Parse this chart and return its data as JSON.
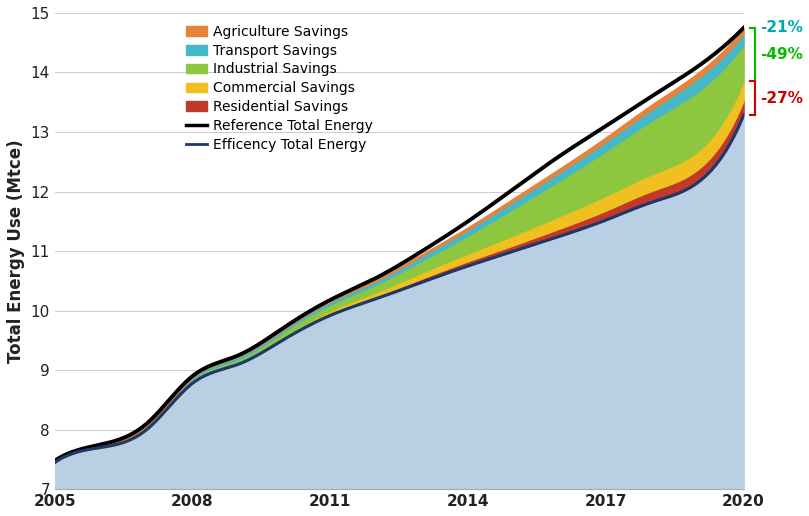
{
  "years": [
    2005,
    2006,
    2007,
    2008,
    2009,
    2010,
    2011,
    2012,
    2013,
    2014,
    2015,
    2016,
    2017,
    2018,
    2019,
    2020
  ],
  "efficiency_total": [
    7.45,
    7.7,
    8.0,
    8.78,
    9.1,
    9.52,
    9.92,
    10.2,
    10.48,
    10.75,
    11.0,
    11.25,
    11.52,
    11.82,
    12.15,
    13.28
  ],
  "reference_total": [
    7.48,
    7.75,
    8.1,
    8.9,
    9.25,
    9.72,
    10.18,
    10.55,
    11.0,
    11.5,
    12.05,
    12.6,
    13.1,
    13.6,
    14.1,
    14.75
  ],
  "residential_savings": [
    0.0,
    0.0,
    0.0,
    0.01,
    0.01,
    0.02,
    0.03,
    0.04,
    0.06,
    0.08,
    0.1,
    0.13,
    0.16,
    0.19,
    0.22,
    0.25
  ],
  "commercial_savings": [
    0.0,
    0.0,
    0.0,
    0.01,
    0.02,
    0.03,
    0.05,
    0.07,
    0.1,
    0.13,
    0.17,
    0.21,
    0.25,
    0.28,
    0.31,
    0.33
  ],
  "industrial_savings": [
    0.0,
    0.01,
    0.03,
    0.04,
    0.06,
    0.08,
    0.1,
    0.13,
    0.2,
    0.3,
    0.45,
    0.6,
    0.75,
    0.9,
    1.0,
    0.62
  ],
  "transport_savings": [
    0.0,
    0.01,
    0.03,
    0.03,
    0.04,
    0.04,
    0.05,
    0.06,
    0.08,
    0.1,
    0.12,
    0.14,
    0.16,
    0.19,
    0.22,
    0.17
  ],
  "agriculture_savings": [
    0.0,
    0.01,
    0.01,
    0.01,
    0.01,
    0.02,
    0.02,
    0.03,
    0.03,
    0.04,
    0.05,
    0.06,
    0.07,
    0.08,
    0.09,
    0.1
  ],
  "efficiency_area_color": "#b8cfe4",
  "residential_color": "#c0392b",
  "commercial_color": "#f0c020",
  "industrial_color": "#8dc63f",
  "transport_color": "#45b8c8",
  "agriculture_color": "#e8823a",
  "reference_line_color": "#000000",
  "efficiency_line_color": "#1a3a6b",
  "ylabel": "Total Energy Use (Mtce)",
  "ylim": [
    7,
    15
  ],
  "yticks": [
    7,
    8,
    9,
    10,
    11,
    12,
    13,
    14,
    15
  ],
  "xticks": [
    2005,
    2008,
    2011,
    2014,
    2017,
    2020
  ],
  "annotation_21_color": "#00aaaa",
  "annotation_49_color": "#00bb00",
  "annotation_27_color": "#cc0000",
  "legend_labels": [
    "Agriculture Savings",
    "Transport Savings",
    "Industrial Savings",
    "Commercial Savings",
    "Residential Savings",
    "Reference Total Energy",
    "Efficency Total Energy"
  ]
}
